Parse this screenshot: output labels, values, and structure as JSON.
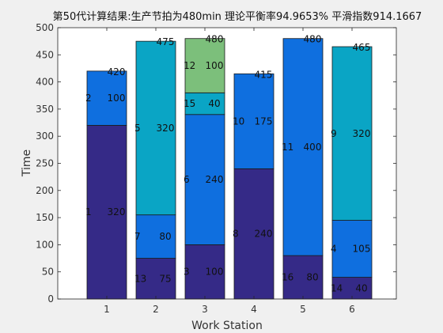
{
  "chart_data": {
    "type": "bar",
    "stacked": true,
    "title": "第50代计算结果:生产节拍为480min 理论平衡率94.9653% 平滑指数914.1667",
    "xlabel": "Work Station",
    "ylabel": "Time",
    "ylim": [
      0,
      500
    ],
    "yticks": [
      0,
      50,
      100,
      150,
      200,
      250,
      300,
      350,
      400,
      450,
      500
    ],
    "categories": [
      "1",
      "2",
      "3",
      "4",
      "5",
      "6"
    ],
    "grid": false,
    "stations": [
      {
        "station": "1",
        "total": 420,
        "segments": [
          {
            "task": "1",
            "time": 320,
            "color": "#352a87"
          },
          {
            "task": "2",
            "time": 100,
            "color": "#0f6fdf"
          }
        ]
      },
      {
        "station": "2",
        "total": 475,
        "segments": [
          {
            "task": "13",
            "time": 75,
            "color": "#352a87"
          },
          {
            "task": "7",
            "time": 80,
            "color": "#0f6fdf"
          },
          {
            "task": "5",
            "time": 320,
            "color": "#0aa5c5"
          }
        ]
      },
      {
        "station": "3",
        "total": 480,
        "segments": [
          {
            "task": "3",
            "time": 100,
            "color": "#352a87"
          },
          {
            "task": "6",
            "time": 240,
            "color": "#0f6fdf"
          },
          {
            "task": "15",
            "time": 40,
            "color": "#0aa5c5"
          },
          {
            "task": "12",
            "time": 100,
            "color": "#7cbf7b"
          }
        ]
      },
      {
        "station": "4",
        "total": 415,
        "segments": [
          {
            "task": "8",
            "time": 240,
            "color": "#352a87"
          },
          {
            "task": "10",
            "time": 175,
            "color": "#0f6fdf"
          }
        ]
      },
      {
        "station": "5",
        "total": 480,
        "segments": [
          {
            "task": "16",
            "time": 80,
            "color": "#352a87"
          },
          {
            "task": "11",
            "time": 400,
            "color": "#0f6fdf"
          }
        ]
      },
      {
        "station": "6",
        "total": 465,
        "segments": [
          {
            "task": "14",
            "time": 40,
            "color": "#352a87"
          },
          {
            "task": "4",
            "time": 105,
            "color": "#0f6fdf"
          },
          {
            "task": "9",
            "time": 320,
            "color": "#0aa5c5"
          }
        ]
      }
    ]
  }
}
